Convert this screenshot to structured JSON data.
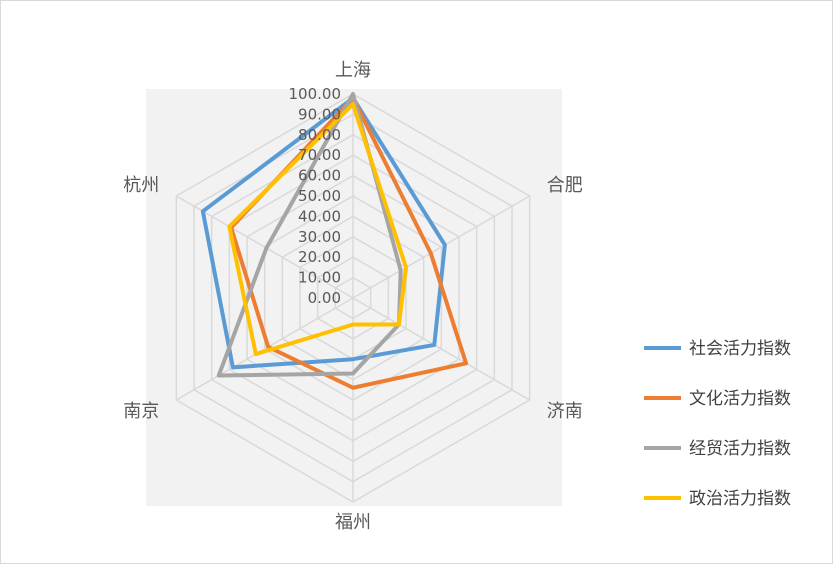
{
  "chart_data": {
    "type": "radar",
    "title": "",
    "categories": [
      "上海",
      "合肥",
      "济南",
      "福州",
      "南京",
      "杭州"
    ],
    "rlim": [
      0,
      100
    ],
    "r_ticks": [
      "0.00",
      "10.00",
      "20.00",
      "30.00",
      "40.00",
      "50.00",
      "60.00",
      "70.00",
      "80.00",
      "90.00",
      "100.00"
    ],
    "legend_position": "right",
    "grid": true,
    "series": [
      {
        "name": "社会活力指数",
        "color": "#5B9BD5",
        "values": [
          98,
          52,
          46,
          30,
          68,
          85
        ]
      },
      {
        "name": "文化活力指数",
        "color": "#ED7D31",
        "values": [
          98,
          44,
          64,
          44,
          48,
          69
        ]
      },
      {
        "name": "经贸活力指数",
        "color": "#A5A5A5",
        "values": [
          100,
          27,
          26,
          37,
          76,
          49
        ]
      },
      {
        "name": "政治活力指数",
        "color": "#FFC000",
        "values": [
          95,
          30,
          26,
          13,
          55,
          70
        ]
      }
    ]
  }
}
